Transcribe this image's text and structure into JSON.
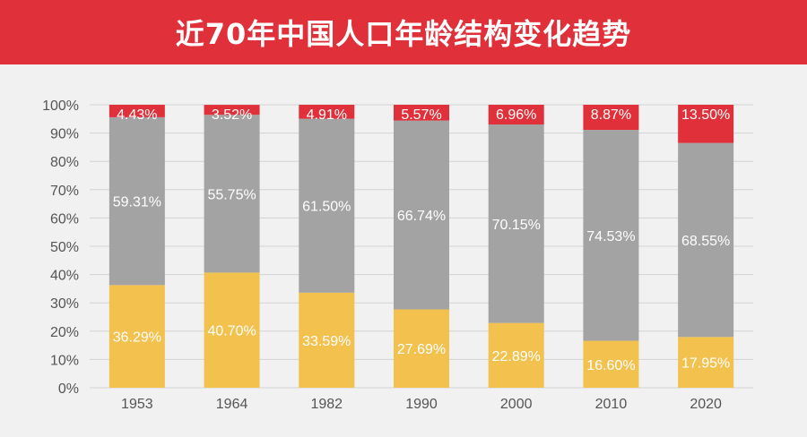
{
  "title": "近70年中国人口年龄结构变化趋势",
  "colors": {
    "header": "#e0303a",
    "young": "#f2c14e",
    "middle": "#a3a3a3",
    "old": "#e0303a",
    "grid": "#d2d2d2"
  },
  "chart_data": {
    "type": "bar",
    "stacked": true,
    "categories": [
      "1953",
      "1964",
      "1982",
      "1990",
      "2000",
      "2010",
      "2020"
    ],
    "series": [
      {
        "values": [
          36.29,
          40.7,
          33.59,
          27.69,
          22.89,
          16.6,
          17.95
        ],
        "labels": [
          "36.29%",
          "40.70%",
          "33.59%",
          "27.69%",
          "22.89%",
          "16.60%",
          "17.95%"
        ]
      },
      {
        "values": [
          59.31,
          55.75,
          61.5,
          66.74,
          70.15,
          74.53,
          68.55
        ],
        "labels": [
          "59.31%",
          "55.75%",
          "61.50%",
          "66.74%",
          "70.15%",
          "74.53%",
          "68.55%"
        ]
      },
      {
        "values": [
          4.43,
          3.52,
          4.91,
          5.57,
          6.96,
          8.87,
          13.5
        ],
        "labels": [
          "4.43%",
          "3.52%",
          "4.91%",
          "5.57%",
          "6.96%",
          "8.87%",
          "13.50%"
        ]
      }
    ],
    "yticks": [
      "0%",
      "10%",
      "20%",
      "30%",
      "40%",
      "50%",
      "60%",
      "70%",
      "80%",
      "90%",
      "100%"
    ],
    "ylim": [
      0,
      100
    ],
    "grid": true
  }
}
